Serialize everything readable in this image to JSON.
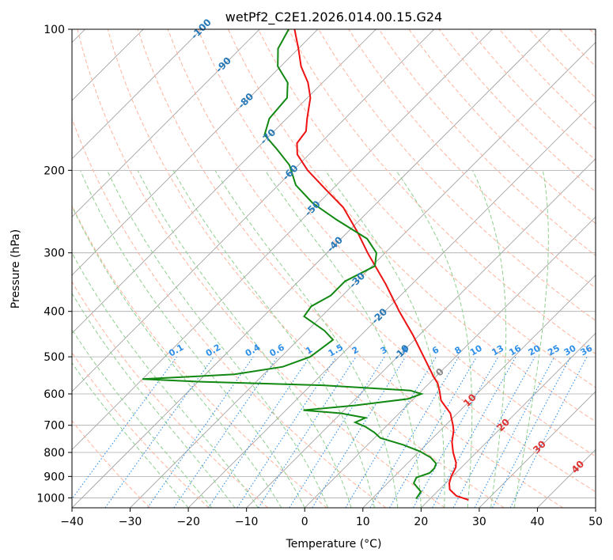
{
  "chart_data": {
    "type": "skew-t",
    "title": "wetPf2_C2E1.2026.014.00.15.G24",
    "xlabel": "Temperature (°C)",
    "ylabel": "Pressure (hPa)",
    "xlim": [
      -40,
      50
    ],
    "ylim": [
      1050,
      100
    ],
    "x_ticks": [
      -40,
      -30,
      -20,
      -10,
      0,
      10,
      20,
      30,
      40,
      50
    ],
    "y_ticks": [
      100,
      200,
      300,
      400,
      500,
      600,
      700,
      800,
      900,
      1000
    ],
    "colors": {
      "temperature": "#ee1111",
      "dewpoint": "#118811",
      "isotherm": "#999999",
      "isobar": "#aaaaaa",
      "dry_adiabat": "#ffb39c",
      "moist_adiabat": "#8fcf8f",
      "mixing_ratio": "#2f8fe8",
      "label_blue": "#2779b8",
      "label_red": "#dd3333",
      "label_gray": "#888888"
    },
    "temperature_profile": [
      {
        "p": 1010,
        "t": 26.8
      },
      {
        "p": 990,
        "t": 24.0
      },
      {
        "p": 960,
        "t": 21.8
      },
      {
        "p": 930,
        "t": 20.6
      },
      {
        "p": 900,
        "t": 19.8
      },
      {
        "p": 880,
        "t": 19.4
      },
      {
        "p": 860,
        "t": 19.0
      },
      {
        "p": 840,
        "t": 18.2
      },
      {
        "p": 800,
        "t": 16.0
      },
      {
        "p": 760,
        "t": 14.0
      },
      {
        "p": 720,
        "t": 12.4
      },
      {
        "p": 700,
        "t": 11.3
      },
      {
        "p": 660,
        "t": 8.8
      },
      {
        "p": 620,
        "t": 5.0
      },
      {
        "p": 590,
        "t": 3.0
      },
      {
        "p": 570,
        "t": 1.5
      },
      {
        "p": 550,
        "t": -0.5
      },
      {
        "p": 500,
        "t": -5.5
      },
      {
        "p": 450,
        "t": -11.0
      },
      {
        "p": 400,
        "t": -17.5
      },
      {
        "p": 350,
        "t": -24.5
      },
      {
        "p": 300,
        "t": -33.0
      },
      {
        "p": 270,
        "t": -38.5
      },
      {
        "p": 240,
        "t": -45.0
      },
      {
        "p": 220,
        "t": -51.0
      },
      {
        "p": 200,
        "t": -57.5
      },
      {
        "p": 185,
        "t": -62.0
      },
      {
        "p": 175,
        "t": -64.0
      },
      {
        "p": 165,
        "t": -64.5
      },
      {
        "p": 155,
        "t": -66.5
      },
      {
        "p": 140,
        "t": -69.5
      },
      {
        "p": 130,
        "t": -72.5
      },
      {
        "p": 120,
        "t": -76.5
      },
      {
        "p": 110,
        "t": -80.0
      },
      {
        "p": 100,
        "t": -84.0
      }
    ],
    "dewpoint_profile": [
      {
        "p": 1005,
        "t": 17.6
      },
      {
        "p": 970,
        "t": 17.2
      },
      {
        "p": 930,
        "t": 14.5
      },
      {
        "p": 905,
        "t": 14.0
      },
      {
        "p": 885,
        "t": 15.5
      },
      {
        "p": 865,
        "t": 15.5
      },
      {
        "p": 845,
        "t": 15.0
      },
      {
        "p": 820,
        "t": 13.0
      },
      {
        "p": 795,
        "t": 10.0
      },
      {
        "p": 770,
        "t": 6.0
      },
      {
        "p": 745,
        "t": 1.0
      },
      {
        "p": 725,
        "t": -1.0
      },
      {
        "p": 705,
        "t": -3.5
      },
      {
        "p": 690,
        "t": -6.0
      },
      {
        "p": 675,
        "t": -5.0
      },
      {
        "p": 660,
        "t": -10.0
      },
      {
        "p": 650,
        "t": -17.0
      },
      {
        "p": 635,
        "t": -9.0
      },
      {
        "p": 615,
        "t": -1.0
      },
      {
        "p": 600,
        "t": 0.5
      },
      {
        "p": 590,
        "t": -2.0
      },
      {
        "p": 575,
        "t": -18.0
      },
      {
        "p": 565,
        "t": -40.0
      },
      {
        "p": 558,
        "t": -50.0
      },
      {
        "p": 545,
        "t": -35.0
      },
      {
        "p": 525,
        "t": -28.0
      },
      {
        "p": 500,
        "t": -25.0
      },
      {
        "p": 480,
        "t": -24.5
      },
      {
        "p": 460,
        "t": -24.0
      },
      {
        "p": 440,
        "t": -27.0
      },
      {
        "p": 410,
        "t": -33.0
      },
      {
        "p": 390,
        "t": -33.5
      },
      {
        "p": 370,
        "t": -32.0
      },
      {
        "p": 345,
        "t": -32.0
      },
      {
        "p": 320,
        "t": -29.5
      },
      {
        "p": 300,
        "t": -31.5
      },
      {
        "p": 280,
        "t": -35.5
      },
      {
        "p": 255,
        "t": -44.0
      },
      {
        "p": 235,
        "t": -51.0
      },
      {
        "p": 215,
        "t": -57.0
      },
      {
        "p": 195,
        "t": -61.5
      },
      {
        "p": 180,
        "t": -66.5
      },
      {
        "p": 168,
        "t": -71.0
      },
      {
        "p": 155,
        "t": -73.0
      },
      {
        "p": 140,
        "t": -73.5
      },
      {
        "p": 130,
        "t": -76.0
      },
      {
        "p": 120,
        "t": -80.5
      },
      {
        "p": 110,
        "t": -83.5
      },
      {
        "p": 100,
        "t": -85.0
      }
    ],
    "isotherm_labels": [
      {
        "t": -100,
        "text": "-100"
      },
      {
        "t": -90,
        "text": "-90"
      },
      {
        "t": -80,
        "text": "-80"
      },
      {
        "t": -70,
        "text": "-70"
      },
      {
        "t": -60,
        "text": "-60"
      },
      {
        "t": -50,
        "text": "-50"
      },
      {
        "t": -40,
        "text": "-40"
      },
      {
        "t": -30,
        "text": "-30"
      },
      {
        "t": -20,
        "text": "-20"
      },
      {
        "t": -10,
        "text": "-10"
      },
      {
        "t": 0,
        "text": "0"
      },
      {
        "t": 10,
        "text": "10"
      },
      {
        "t": 20,
        "text": "20"
      },
      {
        "t": 30,
        "text": "30"
      },
      {
        "t": 40,
        "text": "40"
      }
    ],
    "mixing_ratios": [
      0.1,
      0.2,
      0.4,
      0.6,
      1,
      1.5,
      2,
      3,
      4,
      6,
      8,
      10,
      13,
      16,
      20,
      25,
      30,
      36
    ],
    "mixing_ratio_labels": [
      "0.1",
      "0.2",
      "0.4",
      "0.6",
      "1",
      "1.5",
      "2",
      "3",
      "4",
      "6",
      "8",
      "10",
      "13",
      "16",
      "20",
      "25",
      "30",
      "36"
    ]
  }
}
